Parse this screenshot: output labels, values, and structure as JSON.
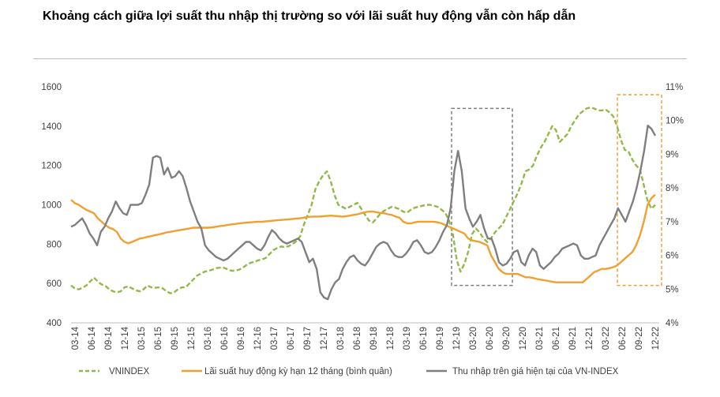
{
  "chart_data": {
    "type": "line",
    "title": "Khoảng cách giữa lợi suất thu nhập thị trường so với lãi suất huy động vẫn còn hấp dẫn",
    "x_tick_labels": [
      "03-14",
      "06-14",
      "09-14",
      "12-14",
      "03-15",
      "06-15",
      "09-15",
      "12-15",
      "03-16",
      "06-16",
      "09-16",
      "12-16",
      "03-17",
      "06-17",
      "09-17",
      "12-17",
      "03-18",
      "06-18",
      "09-18",
      "12-18",
      "03-19",
      "06-19",
      "09-19",
      "12-19",
      "03-20",
      "06-20",
      "09-20",
      "12-20",
      "03-21",
      "06-21",
      "09-21",
      "12-21",
      "03-22",
      "06-22",
      "09-22",
      "12-22"
    ],
    "y_left": {
      "min": 400,
      "max": 1600,
      "ticks": [
        "400",
        "600",
        "800",
        "1000",
        "1200",
        "1400",
        "1600"
      ]
    },
    "y_right": {
      "min": 4,
      "max": 11,
      "ticks": [
        "4%",
        "5%",
        "6%",
        "7%",
        "8%",
        "9%",
        "10%",
        "11%"
      ]
    },
    "series": [
      {
        "name": "VNINDEX",
        "axis": "left",
        "style": "dashed",
        "color": "#92b84a",
        "values": [
          590,
          575,
          570,
          578,
          590,
          610,
          630,
          610,
          595,
          588,
          570,
          560,
          555,
          560,
          580,
          585,
          575,
          565,
          560,
          570,
          590,
          580,
          578,
          580,
          575,
          560,
          550,
          555,
          570,
          580,
          580,
          600,
          620,
          640,
          650,
          660,
          665,
          670,
          678,
          680,
          680,
          672,
          665,
          665,
          670,
          680,
          695,
          705,
          710,
          718,
          722,
          730,
          750,
          770,
          780,
          788,
          785,
          790,
          800,
          815,
          840,
          900,
          950,
          1000,
          1080,
          1120,
          1150,
          1170,
          1120,
          1050,
          1000,
          990,
          980,
          990,
          1000,
          1010,
          980,
          950,
          920,
          910,
          930,
          955,
          970,
          980,
          990,
          985,
          978,
          965,
          960,
          975,
          985,
          990,
          995,
          1000,
          1000,
          995,
          990,
          975,
          960,
          920,
          850,
          720,
          660,
          700,
          760,
          850,
          880,
          860,
          830,
          810,
          830,
          860,
          880,
          900,
          940,
          980,
          1020,
          1060,
          1110,
          1170,
          1180,
          1200,
          1250,
          1290,
          1320,
          1360,
          1400,
          1380,
          1320,
          1340,
          1360,
          1400,
          1430,
          1460,
          1475,
          1490,
          1495,
          1490,
          1480,
          1480,
          1485,
          1470,
          1450,
          1400,
          1330,
          1280,
          1270,
          1230,
          1200,
          1180,
          1100,
          1020,
          980,
          1000
        ]
      },
      {
        "name": "Lãi suất huy động kỳ hạn 12 tháng (bình quân)",
        "axis": "right",
        "style": "solid",
        "color": "#f0a030",
        "values": [
          7.65,
          7.55,
          7.5,
          7.42,
          7.35,
          7.3,
          7.25,
          7.1,
          7.0,
          6.9,
          6.82,
          6.78,
          6.7,
          6.5,
          6.4,
          6.36,
          6.4,
          6.45,
          6.5,
          6.52,
          6.55,
          6.57,
          6.6,
          6.62,
          6.65,
          6.68,
          6.7,
          6.72,
          6.74,
          6.76,
          6.78,
          6.8,
          6.82,
          6.82,
          6.82,
          6.82,
          6.82,
          6.83,
          6.85,
          6.87,
          6.88,
          6.9,
          6.92,
          6.93,
          6.95,
          6.96,
          6.97,
          6.98,
          6.99,
          7.0,
          7.0,
          7.01,
          7.02,
          7.03,
          7.04,
          7.05,
          7.06,
          7.07,
          7.08,
          7.09,
          7.1,
          7.12,
          7.14,
          7.15,
          7.15,
          7.15,
          7.16,
          7.17,
          7.18,
          7.17,
          7.16,
          7.15,
          7.16,
          7.18,
          7.2,
          7.22,
          7.25,
          7.28,
          7.3,
          7.3,
          7.28,
          7.26,
          7.25,
          7.22,
          7.2,
          7.15,
          7.12,
          7.0,
          6.95,
          6.95,
          6.98,
          7.0,
          7.0,
          7.0,
          7.0,
          7.0,
          6.98,
          6.95,
          6.9,
          6.85,
          6.8,
          6.75,
          6.7,
          6.65,
          6.5,
          6.45,
          6.42,
          6.4,
          6.35,
          6.3,
          6.0,
          5.8,
          5.6,
          5.5,
          5.45,
          5.45,
          5.45,
          5.45,
          5.4,
          5.35,
          5.35,
          5.33,
          5.3,
          5.28,
          5.26,
          5.24,
          5.22,
          5.2,
          5.2,
          5.2,
          5.2,
          5.2,
          5.2,
          5.2,
          5.2,
          5.3,
          5.4,
          5.5,
          5.55,
          5.6,
          5.6,
          5.62,
          5.65,
          5.7,
          5.8,
          5.9,
          6.0,
          6.1,
          6.3,
          6.6,
          7.0,
          7.5,
          7.7,
          7.8
        ]
      },
      {
        "name": "Thu nhập trên giá hiện tại của VN-INDEX",
        "axis": "right",
        "style": "solid",
        "color": "#7f7f7f",
        "values": [
          6.85,
          6.9,
          7.0,
          7.1,
          6.9,
          6.65,
          6.5,
          6.3,
          6.7,
          6.85,
          7.1,
          7.3,
          7.6,
          7.4,
          7.25,
          7.2,
          7.5,
          7.5,
          7.5,
          7.55,
          7.8,
          8.1,
          8.9,
          8.95,
          8.9,
          8.4,
          8.6,
          8.3,
          8.35,
          8.5,
          8.35,
          8.0,
          7.6,
          7.3,
          7.0,
          6.8,
          6.3,
          6.15,
          6.05,
          5.95,
          5.9,
          5.85,
          5.9,
          6.0,
          6.1,
          6.2,
          6.3,
          6.4,
          6.4,
          6.3,
          6.2,
          6.15,
          6.3,
          6.55,
          6.75,
          6.65,
          6.5,
          6.4,
          6.35,
          6.4,
          6.45,
          6.5,
          6.4,
          6.1,
          5.8,
          5.9,
          5.6,
          4.9,
          4.75,
          4.7,
          5.0,
          5.2,
          5.3,
          5.6,
          5.8,
          5.95,
          6.0,
          5.85,
          5.75,
          5.7,
          5.85,
          6.05,
          6.25,
          6.35,
          6.4,
          6.35,
          6.15,
          6.0,
          5.95,
          5.95,
          6.05,
          6.2,
          6.4,
          6.45,
          6.3,
          6.1,
          6.05,
          6.1,
          6.25,
          6.45,
          6.7,
          6.9,
          7.4,
          8.5,
          9.1,
          8.5,
          7.4,
          7.1,
          6.85,
          7.0,
          7.2,
          6.8,
          6.5,
          6.5,
          6.2,
          5.8,
          5.7,
          5.75,
          5.9,
          6.1,
          6.15,
          5.8,
          5.7,
          6.0,
          6.2,
          6.1,
          5.7,
          5.6,
          5.7,
          5.8,
          5.95,
          6.05,
          6.2,
          6.25,
          6.3,
          6.35,
          6.3,
          6.0,
          5.9,
          5.9,
          5.95,
          6.0,
          6.3,
          6.5,
          6.7,
          6.9,
          7.1,
          7.4,
          7.2,
          7.0,
          7.3,
          7.6,
          8.0,
          8.5,
          9.1,
          9.85,
          9.75,
          9.55
        ]
      }
    ],
    "annotations": [
      {
        "type": "dashed-box",
        "color": "#7f7f7f",
        "x_from": "12-19",
        "x_to": "09-20"
      },
      {
        "type": "dashed-box",
        "color": "#f0a030",
        "x_from": "06-22",
        "x_to": "12-22"
      }
    ],
    "legend_position": "bottom",
    "colors": {
      "vnindex": "#92b84a",
      "deposit": "#f0a030",
      "earnings_yield": "#7f7f7f",
      "axis": "#bfbfbf",
      "text": "#404040"
    }
  }
}
